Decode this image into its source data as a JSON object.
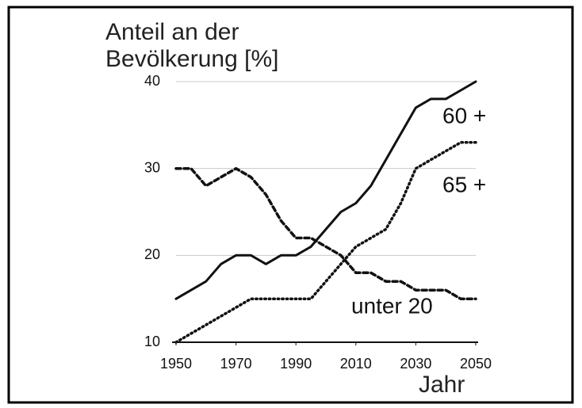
{
  "chart_data": {
    "type": "line",
    "ylabel": [
      "Anteil an der",
      "Bevölkerung [%]"
    ],
    "xlabel": "Jahr",
    "x": [
      1950,
      1955,
      1960,
      1965,
      1970,
      1975,
      1980,
      1985,
      1990,
      1995,
      2000,
      2005,
      2010,
      2015,
      2020,
      2025,
      2030,
      2035,
      2040,
      2045,
      2050
    ],
    "series": [
      {
        "name": "60 +",
        "color": "#111111",
        "style": "solid",
        "values": [
          15,
          16,
          17,
          19,
          20,
          20,
          19,
          20,
          20,
          21,
          23,
          25,
          26,
          28,
          31,
          34,
          37,
          38,
          38,
          39,
          40
        ]
      },
      {
        "name": "65 +",
        "color": "#111111",
        "style": "dotted",
        "values": [
          10,
          11,
          12,
          13,
          14,
          15,
          15,
          15,
          15,
          15,
          17,
          19,
          21,
          22,
          23,
          26,
          30,
          31,
          32,
          33,
          33
        ]
      },
      {
        "name": "unter 20",
        "color": "#111111",
        "style": "dashed",
        "values": [
          30,
          30,
          28,
          29,
          30,
          29,
          27,
          24,
          22,
          22,
          21,
          20,
          18,
          18,
          17,
          17,
          16,
          16,
          16,
          15,
          15
        ]
      }
    ],
    "xlim": [
      1950,
      2050
    ],
    "xticks": [
      1950,
      1970,
      1990,
      2010,
      2030,
      2050
    ],
    "ylim": [
      10,
      40
    ],
    "yticks": [
      10,
      20,
      30,
      40
    ],
    "grid": true
  }
}
